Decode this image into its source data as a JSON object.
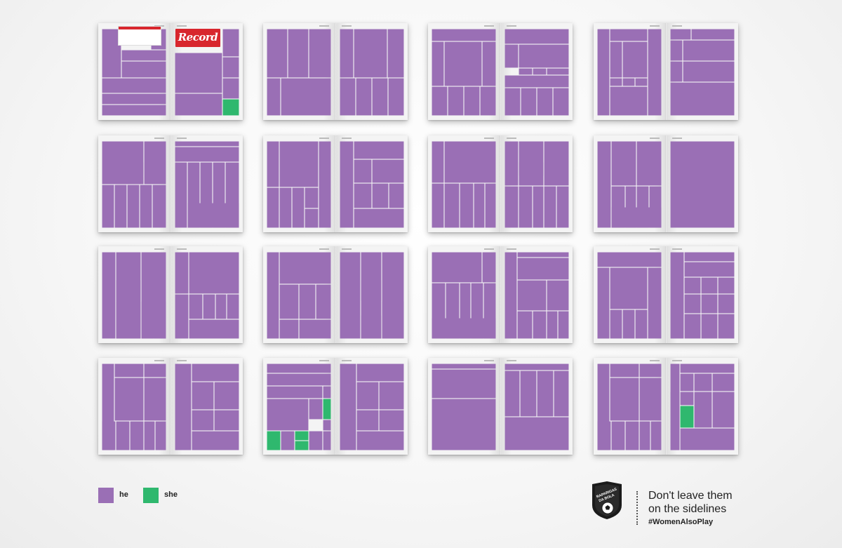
{
  "colors": {
    "he": "#9a6fb5",
    "she": "#2fb86e",
    "gutter": "#f4f4f4"
  },
  "cover_masthead": "Record",
  "legend": [
    {
      "key": "he",
      "label": "he",
      "color": "#9a6fb5"
    },
    {
      "key": "she",
      "label": "she",
      "color": "#2fb86e"
    }
  ],
  "brand": {
    "logo_text": "RAPARIGAS DA BOLA",
    "slogan_line1": "Don't leave them",
    "slogan_line2": "on the sidelines",
    "hashtag": "#WomenAlsoPlay"
  }
}
